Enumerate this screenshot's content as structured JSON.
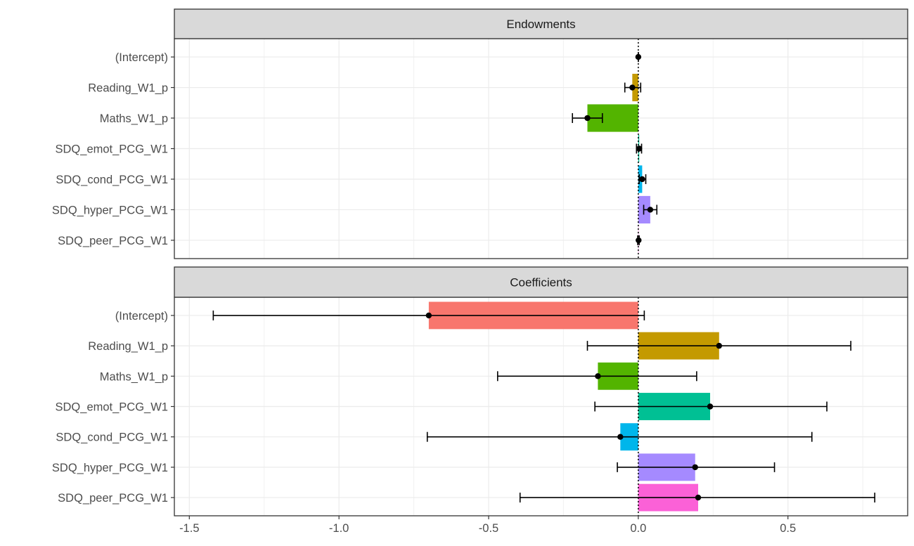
{
  "chart_data": {
    "type": "bar",
    "orientation": "horizontal",
    "x_ticks": [
      -1.5,
      -1.0,
      -0.5,
      0.0,
      0.5
    ],
    "x_tick_labels": [
      "-1.5",
      "-1.0",
      "-0.5",
      "0.0",
      "0.5"
    ],
    "xlim": [
      -1.55,
      0.9
    ],
    "reference_line": 0,
    "grid": true,
    "legend": "none",
    "colors": {
      "(Intercept)": "#F8766D",
      "Reading_W1_p": "#C49A00",
      "Maths_W1_p": "#53B400",
      "SDQ_emot_PCG_W1": "#00C094",
      "SDQ_cond_PCG_W1": "#00B6EB",
      "SDQ_hyper_PCG_W1": "#A58AFF",
      "SDQ_peer_PCG_W1": "#FB61D7"
    },
    "categories": [
      "(Intercept)",
      "Reading_W1_p",
      "Maths_W1_p",
      "SDQ_emot_PCG_W1",
      "SDQ_cond_PCG_W1",
      "SDQ_hyper_PCG_W1",
      "SDQ_peer_PCG_W1"
    ],
    "panels": [
      {
        "title": "Endowments",
        "values": [
          0.0,
          -0.02,
          -0.17,
          0.003,
          0.013,
          0.04,
          0.001
        ],
        "lower": [
          0.0,
          -0.045,
          -0.22,
          -0.006,
          0.003,
          0.018,
          -0.002
        ],
        "upper": [
          0.0,
          0.008,
          -0.12,
          0.011,
          0.025,
          0.062,
          0.003
        ]
      },
      {
        "title": "Coefficients",
        "values": [
          -0.7,
          0.27,
          -0.135,
          0.24,
          -0.06,
          0.19,
          0.2
        ],
        "lower": [
          -1.42,
          -0.17,
          -0.47,
          -0.145,
          -0.705,
          -0.07,
          -0.395
        ],
        "upper": [
          0.02,
          0.71,
          0.195,
          0.63,
          0.58,
          0.455,
          0.79
        ]
      }
    ]
  }
}
